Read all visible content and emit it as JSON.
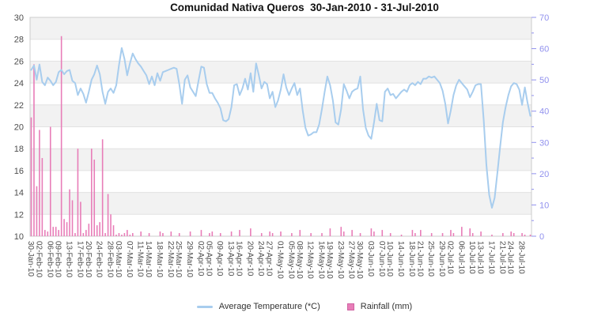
{
  "title": "Comunidad Nativa Queros  30-Jan-2010 - 31-Jul-2010",
  "legend": {
    "temperature_label": "Average Temperature (*C)",
    "rainfall_label": "Rainfall (mm)"
  },
  "colors": {
    "temperature_line": "#a8cdee",
    "rainfall_bar": "#e87db8",
    "right_axis_text": "#9191ee",
    "left_axis_text": "#4d4d4d",
    "x_axis_text": "#4d4d4d",
    "band_fill": "#f2f2f2",
    "gridline": "#e2e2e2",
    "plot_border": "#cccccc",
    "title_text": "#111111"
  },
  "chart_data": {
    "type": "line+bar",
    "title": "Comunidad Nativa Queros  30-Jan-2010 - 31-Jul-2010",
    "x_start_date": "30-Jan-10",
    "x_end_date": "31-Jul-10",
    "n_days": 183,
    "left_axis": {
      "label": "",
      "min": 10,
      "max": 30,
      "step": 2,
      "units": "*C"
    },
    "right_axis": {
      "label": "",
      "min": 0,
      "max": 70,
      "step": 10,
      "minor_step": 5,
      "units": "mm"
    },
    "grid": "alternating-bands",
    "legend_position": "bottom-center",
    "x_tick_labels": [
      "30-Jan-10",
      "02-Feb-10",
      "06-Feb-10",
      "09-Feb-10",
      "13-Feb-10",
      "17-Feb-10",
      "20-Feb-10",
      "24-Feb-10",
      "28-Feb-10",
      "03-Mar-10",
      "07-Mar-10",
      "11-Mar-10",
      "14-Mar-10",
      "18-Mar-10",
      "22-Mar-10",
      "25-Mar-10",
      "29-Mar-10",
      "02-Apr-10",
      "05-Apr-10",
      "09-Apr-10",
      "13-Apr-10",
      "16-Apr-10",
      "20-Apr-10",
      "24-Apr-10",
      "27-Apr-10",
      "01-May-10",
      "05-May-10",
      "08-May-10",
      "12-May-10",
      "16-May-10",
      "19-May-10",
      "23-May-10",
      "27-May-10",
      "30-May-10",
      "03-Jun-10",
      "07-Jun-10",
      "10-Jun-10",
      "14-Jun-10",
      "18-Jun-10",
      "21-Jun-10",
      "25-Jun-10",
      "29-Jun-10",
      "02-Jul-10",
      "06-Jul-10",
      "10-Jul-10",
      "13-Jul-10",
      "17-Jul-10",
      "21-Jul-10",
      "24-Jul-10",
      "28-Jul-10"
    ],
    "x_tick_days": [
      0,
      3,
      7,
      10,
      14,
      18,
      21,
      25,
      29,
      32,
      36,
      40,
      43,
      47,
      51,
      54,
      58,
      62,
      65,
      69,
      73,
      76,
      80,
      84,
      87,
      91,
      95,
      98,
      102,
      106,
      109,
      113,
      117,
      120,
      124,
      128,
      131,
      135,
      139,
      142,
      146,
      150,
      153,
      157,
      161,
      164,
      168,
      172,
      175,
      179
    ],
    "series": [
      {
        "name": "Average Temperature (*C)",
        "type": "line",
        "axis": "left",
        "values": [
          25.2,
          25.6,
          24.3,
          25.7,
          24.1,
          23.8,
          24.5,
          24.2,
          23.8,
          24.1,
          25.0,
          25.2,
          24.8,
          25.1,
          25.2,
          24.2,
          24.0,
          22.9,
          23.5,
          23.0,
          22.2,
          23.2,
          24.3,
          24.8,
          25.6,
          24.8,
          23.2,
          22.1,
          23.2,
          23.5,
          23.1,
          23.8,
          25.6,
          27.2,
          26.2,
          24.7,
          25.8,
          26.7,
          26.2,
          25.8,
          25.5,
          25.1,
          24.7,
          23.9,
          24.6,
          23.8,
          24.9,
          24.2,
          25.0,
          25.1,
          25.2,
          25.3,
          25.4,
          25.3,
          23.9,
          22.1,
          24.3,
          24.7,
          23.6,
          23.2,
          22.8,
          24.2,
          25.5,
          25.4,
          23.9,
          23.1,
          23.1,
          22.6,
          22.2,
          21.7,
          20.6,
          20.5,
          20.7,
          21.8,
          23.8,
          23.9,
          22.9,
          23.5,
          24.4,
          23.4,
          24.9,
          23.2,
          25.8,
          24.7,
          23.5,
          24.1,
          23.9,
          22.6,
          23.2,
          21.8,
          22.4,
          23.4,
          24.8,
          23.6,
          22.9,
          23.5,
          24.0,
          22.9,
          23.5,
          21.5,
          19.9,
          19.2,
          19.3,
          19.5,
          19.5,
          20.2,
          21.6,
          23.2,
          24.6,
          23.8,
          22.4,
          20.4,
          20.2,
          21.6,
          23.9,
          23.3,
          22.6,
          23.2,
          23.4,
          23.5,
          24.6,
          21.6,
          19.9,
          19.2,
          18.9,
          20.4,
          22.1,
          20.6,
          20.5,
          23.2,
          23.5,
          22.9,
          23.0,
          22.6,
          22.9,
          23.2,
          23.4,
          23.2,
          23.8,
          24.0,
          23.8,
          24.1,
          23.9,
          24.4,
          24.4,
          24.6,
          24.5,
          24.6,
          24.3,
          24.0,
          23.3,
          22.1,
          20.3,
          21.5,
          22.9,
          23.8,
          24.3,
          24.0,
          23.7,
          23.4,
          22.7,
          23.2,
          23.8,
          23.9,
          23.9,
          20.6,
          16.5,
          13.8,
          12.6,
          13.5,
          15.8,
          18.2,
          20.4,
          21.8,
          22.9,
          23.7,
          24.0,
          23.9,
          23.4,
          22.0,
          23.6,
          22.2,
          21.0
        ]
      },
      {
        "name": "Rainfall (mm)",
        "type": "bar",
        "axis": "right",
        "values": [
          38,
          55,
          16,
          34,
          25,
          2,
          1.5,
          35,
          3,
          3,
          2,
          64,
          5.5,
          4.5,
          15,
          11.5,
          1,
          28,
          11,
          1,
          2,
          4,
          28,
          24.5,
          3.5,
          4.5,
          31,
          1,
          13.5,
          7,
          3.5,
          0.5,
          1,
          0.5,
          1,
          2,
          0.5,
          1,
          0,
          0,
          1.5,
          0,
          0,
          1,
          0,
          0,
          0,
          1.5,
          1,
          0,
          0,
          1.5,
          0,
          0,
          1,
          0,
          0,
          0,
          1.5,
          0,
          0,
          0,
          2,
          0,
          0,
          1,
          1.5,
          0,
          0,
          1,
          0,
          0,
          0,
          1.5,
          0,
          0,
          2,
          0,
          0,
          0,
          2.5,
          0,
          0,
          0,
          1,
          0,
          0,
          1.5,
          1,
          0,
          0,
          1.5,
          0,
          0,
          0,
          1,
          0,
          0,
          2,
          0,
          0,
          0,
          1,
          0,
          0,
          0,
          1,
          0,
          0,
          2.5,
          0,
          0,
          0,
          3,
          1.5,
          0,
          0,
          2,
          0,
          0,
          1,
          0,
          0,
          0,
          2.5,
          1.5,
          0,
          0,
          2,
          0,
          0,
          1,
          0,
          0,
          0,
          0.5,
          0,
          0,
          0,
          2,
          1,
          0,
          2,
          0,
          0,
          0,
          1,
          0,
          0,
          0,
          1,
          0,
          0,
          2,
          1,
          0,
          0,
          3,
          0,
          0,
          2.5,
          1,
          0,
          0,
          1.5,
          0,
          0,
          0,
          0.5,
          0,
          0,
          0,
          1,
          0,
          0,
          1.5,
          1,
          0,
          0,
          1,
          0.5,
          0,
          0.5
        ]
      }
    ]
  }
}
